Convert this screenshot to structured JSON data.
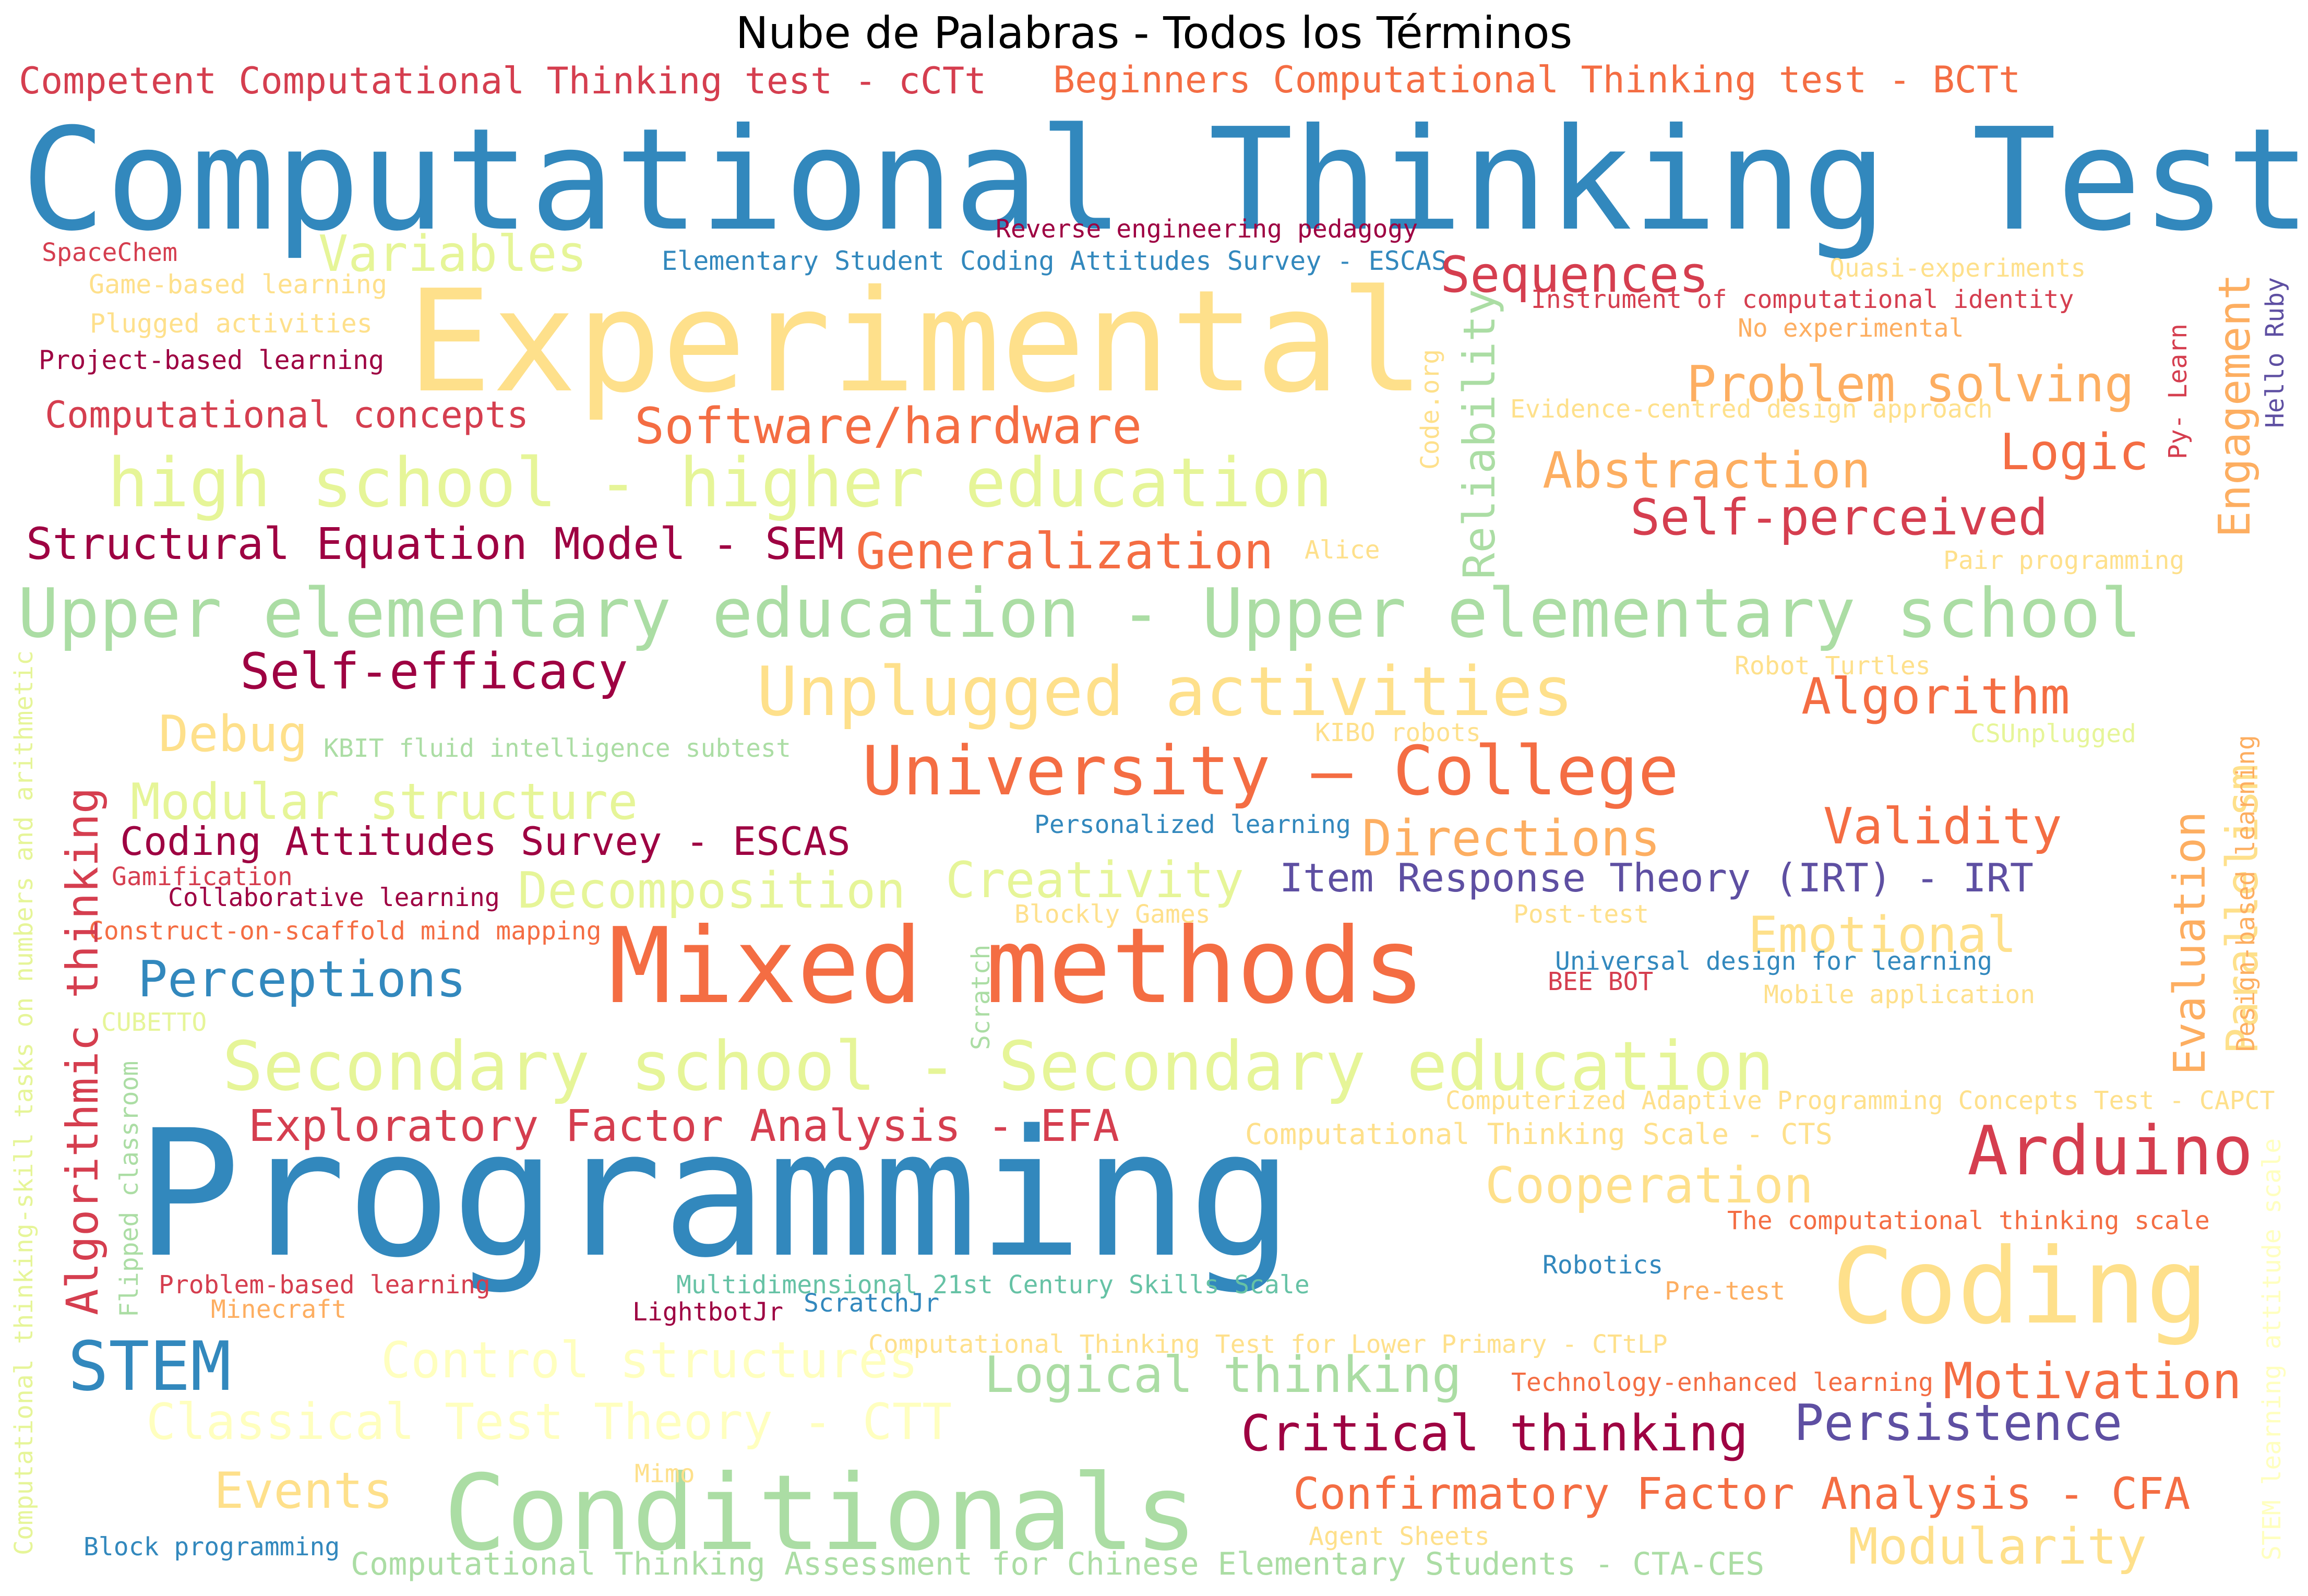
{
  "title": "Nube de Palabras - Todos los Términos",
  "words": [
    {
      "text": "Competent Computational Thinking test - cCTt",
      "color": "#d53e4f"
    },
    {
      "text": "Beginners Computational Thinking test - BCTt",
      "color": "#f46d43"
    },
    {
      "text": "Computational Thinking Test",
      "color": "#3288bd"
    },
    {
      "text": "SpaceChem",
      "color": "#d53e4f"
    },
    {
      "text": "Game-based learning",
      "color": "#fee08b"
    },
    {
      "text": "Plugged activities",
      "color": "#fee08b"
    },
    {
      "text": "Project-based learning",
      "color": "#9e0142"
    },
    {
      "text": "Computational concepts",
      "color": "#d53e4f"
    },
    {
      "text": "Variables",
      "color": "#e6f598"
    },
    {
      "text": "Reverse engineering pedagogy",
      "color": "#9e0142"
    },
    {
      "text": "Elementary Student Coding Attitudes Survey - ESCAS",
      "color": "#3288bd"
    },
    {
      "text": "Experimental",
      "color": "#fee08b"
    },
    {
      "text": "Sequences",
      "color": "#d53e4f"
    },
    {
      "text": "Quasi-experiments",
      "color": "#fee08b"
    },
    {
      "text": "Instrument of computational identity",
      "color": "#d53e4f"
    },
    {
      "text": "No experimental",
      "color": "#fdae61"
    },
    {
      "text": "Problem solving",
      "color": "#fdae61"
    },
    {
      "text": "Evidence-centred design approach",
      "color": "#fee08b"
    },
    {
      "text": "Software/hardware",
      "color": "#f46d43"
    },
    {
      "text": "high school - higher education",
      "color": "#e6f598"
    },
    {
      "text": "Abstraction",
      "color": "#fdae61"
    },
    {
      "text": "Logic",
      "color": "#f46d43"
    },
    {
      "text": "Self-perceived",
      "color": "#d53e4f"
    },
    {
      "text": "Structural Equation Model - SEM",
      "color": "#9e0142"
    },
    {
      "text": "Generalization",
      "color": "#f46d43"
    },
    {
      "text": "Alice",
      "color": "#fee08b"
    },
    {
      "text": "Pair programming",
      "color": "#fee08b"
    },
    {
      "text": "Upper elementary education - Upper elementary school",
      "color": "#abdda4"
    },
    {
      "text": "Self-efficacy",
      "color": "#9e0142"
    },
    {
      "text": "Unplugged activities",
      "color": "#fee08b"
    },
    {
      "text": "Robot Turtles",
      "color": "#fee08b"
    },
    {
      "text": "Algorithm",
      "color": "#f46d43"
    },
    {
      "text": "Debug",
      "color": "#fee08b"
    },
    {
      "text": "KBIT fluid intelligence subtest",
      "color": "#abdda4"
    },
    {
      "text": "KIBO robots",
      "color": "#fee08b"
    },
    {
      "text": "CSUnplugged",
      "color": "#e6f598"
    },
    {
      "text": "University – College",
      "color": "#f46d43"
    },
    {
      "text": "Modular structure",
      "color": "#e6f598"
    },
    {
      "text": "Personalized learning",
      "color": "#3288bd"
    },
    {
      "text": "Validity",
      "color": "#f46d43"
    },
    {
      "text": "Coding Attitudes Survey - ESCAS",
      "color": "#9e0142"
    },
    {
      "text": "Directions",
      "color": "#fdae61"
    },
    {
      "text": "Gamification",
      "color": "#d53e4f"
    },
    {
      "text": "Collaborative learning",
      "color": "#9e0142"
    },
    {
      "text": "Decomposition",
      "color": "#e6f598"
    },
    {
      "text": "Creativity",
      "color": "#e6f598"
    },
    {
      "text": "Item Response Theory (IRT) - IRT",
      "color": "#5e4fa2"
    },
    {
      "text": "Construct-on-scaffold mind mapping",
      "color": "#f46d43"
    },
    {
      "text": "Blockly Games",
      "color": "#fee08b"
    },
    {
      "text": "Post-test",
      "color": "#fee08b"
    },
    {
      "text": "Emotional",
      "color": "#fee08b"
    },
    {
      "text": "Perceptions",
      "color": "#3288bd"
    },
    {
      "text": "Mixed methods",
      "color": "#f46d43"
    },
    {
      "text": "Universal design for learning",
      "color": "#3288bd"
    },
    {
      "text": "BEE BOT",
      "color": "#d53e4f"
    },
    {
      "text": "Mobile application",
      "color": "#fee08b"
    },
    {
      "text": "CUBETTO",
      "color": "#e6f598"
    },
    {
      "text": "Secondary school - Secondary education",
      "color": "#e6f598"
    },
    {
      "text": "Computerized Adaptive Programming Concepts Test - CAPCT",
      "color": "#fee08b"
    },
    {
      "text": "Exploratory Factor Analysis - EFA",
      "color": "#d53e4f"
    },
    {
      "text": "Computational Thinking Scale - CTS",
      "color": "#fee08b"
    },
    {
      "text": "Arduino",
      "color": "#d53e4f"
    },
    {
      "text": "Programming",
      "color": "#3288bd"
    },
    {
      "text": "Cooperation",
      "color": "#fee08b"
    },
    {
      "text": "The computational thinking scale",
      "color": "#f46d43"
    },
    {
      "text": "Robotics",
      "color": "#3288bd"
    },
    {
      "text": "Problem-based learning",
      "color": "#d53e4f"
    },
    {
      "text": "Multidimensional 21st Century Skills Scale",
      "color": "#66c2a5"
    },
    {
      "text": "Minecraft",
      "color": "#fdae61"
    },
    {
      "text": "LightbotJr",
      "color": "#9e0142"
    },
    {
      "text": "ScratchJr",
      "color": "#3288bd"
    },
    {
      "text": "Pre-test",
      "color": "#fdae61"
    },
    {
      "text": "Coding",
      "color": "#fee08b"
    },
    {
      "text": "Computational Thinking Test for Lower Primary - CTtLP",
      "color": "#fee08b"
    },
    {
      "text": "STEM",
      "color": "#3288bd"
    },
    {
      "text": "Control structures",
      "color": "#ffffbf"
    },
    {
      "text": "Logical thinking",
      "color": "#abdda4"
    },
    {
      "text": "Technology-enhanced learning",
      "color": "#f46d43"
    },
    {
      "text": "Motivation",
      "color": "#f46d43"
    },
    {
      "text": "Classical Test Theory - CTT",
      "color": "#ffffbf"
    },
    {
      "text": "Critical thinking",
      "color": "#9e0142"
    },
    {
      "text": "Persistence",
      "color": "#5e4fa2"
    },
    {
      "text": "Events",
      "color": "#fee08b"
    },
    {
      "text": "Conditionals",
      "color": "#abdda4"
    },
    {
      "text": "Mimo",
      "color": "#fee08b"
    },
    {
      "text": "Confirmatory Factor Analysis - CFA",
      "color": "#f46d43"
    },
    {
      "text": "Agent Sheets",
      "color": "#fee08b"
    },
    {
      "text": "Block programming",
      "color": "#3288bd"
    },
    {
      "text": "Computational Thinking Assessment for Chinese Elementary Students - CTA-CES",
      "color": "#abdda4"
    },
    {
      "text": "Modularity",
      "color": "#fee08b"
    },
    {
      "text": "Code.org",
      "color": "#fee08b"
    },
    {
      "text": "Reliability",
      "color": "#abdda4"
    },
    {
      "text": "Py- Learn",
      "color": "#d53e4f"
    },
    {
      "text": "Engagement",
      "color": "#fdae61"
    },
    {
      "text": "Hello Ruby",
      "color": "#5e4fa2"
    },
    {
      "text": "Algorithmic thinking",
      "color": "#d53e4f"
    },
    {
      "text": "Computational thinking-skill tasks on numbers and arithmetic",
      "color": "#e6f598"
    },
    {
      "text": "Flipped classroom",
      "color": "#abdda4"
    },
    {
      "text": "Scratch",
      "color": "#abdda4"
    },
    {
      "text": "Evaluation",
      "color": "#fdae61"
    },
    {
      "text": "Parallelism",
      "color": "#fee08b"
    },
    {
      "text": "Design-based learning",
      "color": "#fdae61"
    },
    {
      "text": "STEM learning attitude scale",
      "color": "#ffffbf"
    }
  ]
}
